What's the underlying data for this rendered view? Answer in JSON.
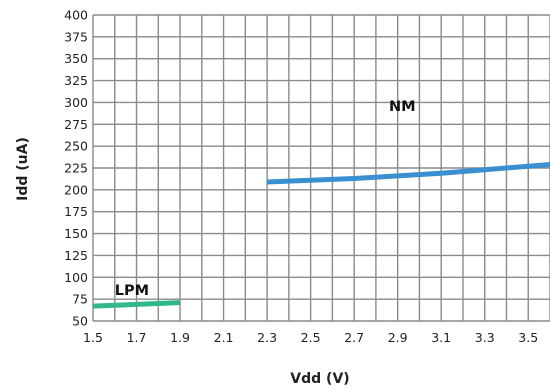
{
  "chart_data": {
    "type": "line",
    "xlabel": "Vdd (V)",
    "ylabel": "Idd (uA)",
    "xlim": [
      1.5,
      3.6
    ],
    "ylim": [
      50,
      400
    ],
    "x_ticks": [
      "1.5",
      "1.7",
      "1.9",
      "2.1",
      "2.3",
      "2.5",
      "2.7",
      "2.9",
      "3.1",
      "3.3",
      "3.5"
    ],
    "y_ticks": [
      "400",
      "375",
      "350",
      "325",
      "300",
      "275",
      "250",
      "225",
      "200",
      "175",
      "150",
      "125",
      "100",
      "75",
      "50"
    ],
    "grid": true,
    "series": [
      {
        "name": "NM",
        "color": "#3a8fd0",
        "x": [
          2.3,
          2.5,
          2.7,
          2.9,
          3.1,
          3.3,
          3.5,
          3.6
        ],
        "y": [
          209,
          211,
          213,
          216,
          219,
          223,
          227,
          229
        ]
      },
      {
        "name": "LPM",
        "color": "#2fb98a",
        "x": [
          1.5,
          1.7,
          1.9
        ],
        "y": [
          67,
          69,
          71
        ]
      }
    ],
    "annotations": [
      {
        "text": "NM",
        "x": 2.86,
        "y": 290
      },
      {
        "text": "LPM",
        "x": 1.6,
        "y": 80
      }
    ]
  }
}
